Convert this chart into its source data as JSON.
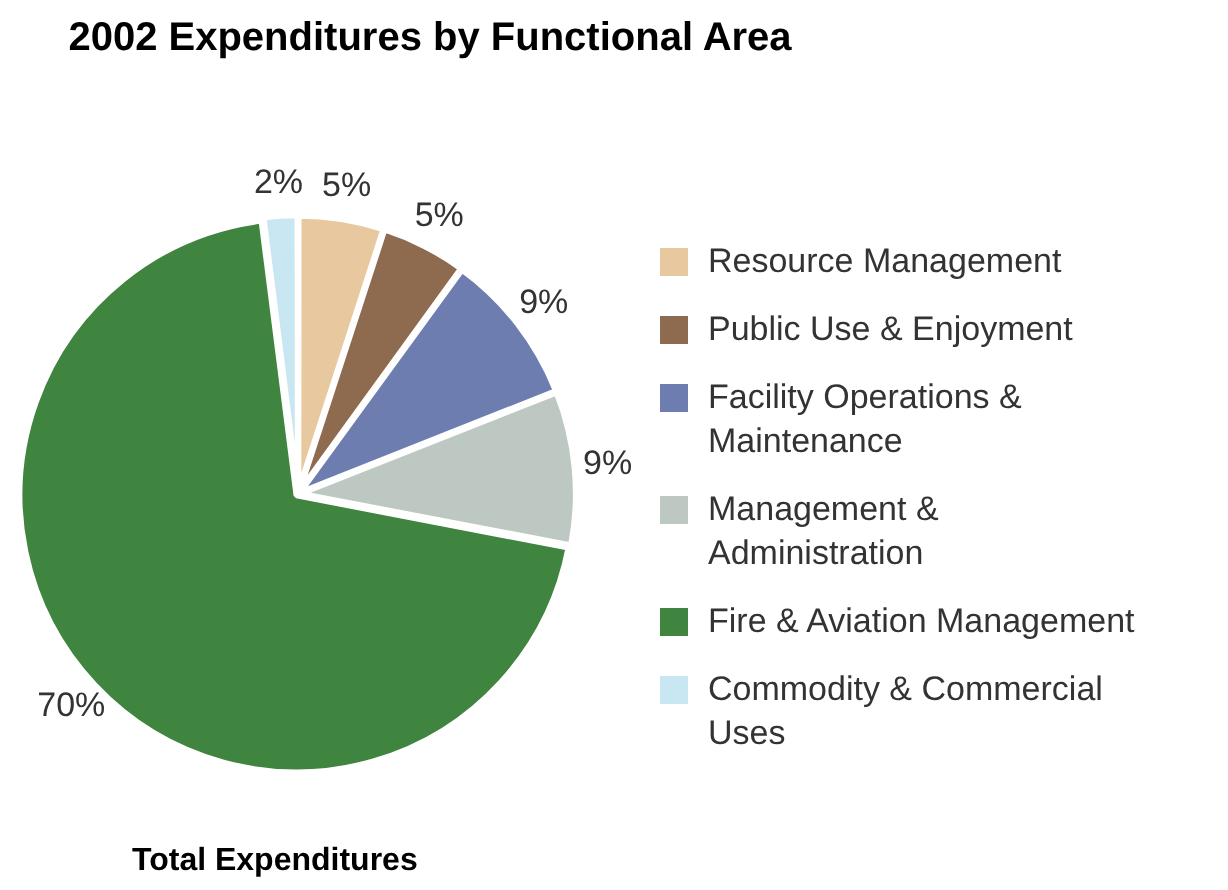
{
  "chart_data": {
    "type": "pie",
    "title": "2002 Expenditures by Functional Area",
    "categories": [
      "Resource Management",
      "Public Use & Enjoyment",
      "Facility Operations & Maintenance",
      "Management & Administration",
      "Fire & Aviation Management",
      "Commodity & Commercial Uses"
    ],
    "values": [
      5,
      5,
      9,
      9,
      70,
      2
    ],
    "colors": [
      "#e8c89e",
      "#8e6a4e",
      "#6e7daf",
      "#bec8c3",
      "#3f843f",
      "#c9e6f3"
    ],
    "value_labels": [
      "5%",
      "5%",
      "9%",
      "9%",
      "70%",
      "2%"
    ],
    "legend": "right",
    "annotations": [
      "Total Expenditures"
    ]
  }
}
